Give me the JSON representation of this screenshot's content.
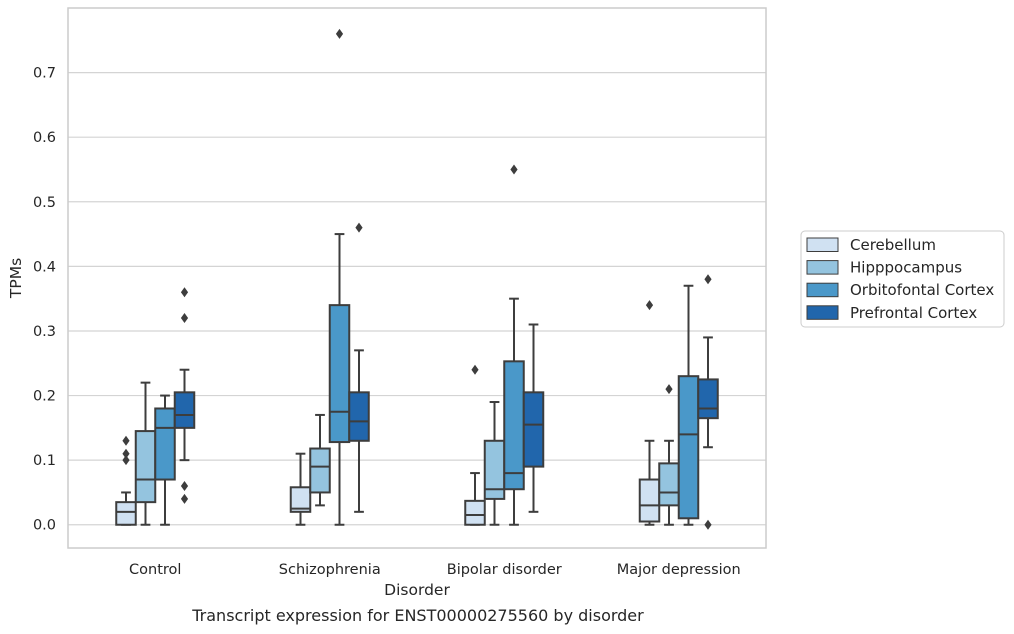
{
  "caption": "Transcript expression for ENST00000275560 by disorder",
  "chart_data": {
    "type": "boxplot",
    "xlabel": "Disorder",
    "ylabel": "TPMs",
    "ylim": [
      -0.036,
      0.8
    ],
    "yticks": [
      0.0,
      0.1,
      0.2,
      0.3,
      0.4,
      0.5,
      0.6,
      0.7
    ],
    "ytick_labels": [
      "0.0",
      "0.1",
      "0.2",
      "0.3",
      "0.4",
      "0.5",
      "0.6",
      "0.7"
    ],
    "grid": "horizontal",
    "legend_position": "right",
    "categories": [
      "Control",
      "Schizophrenia",
      "Bipolar disorder",
      "Major depression"
    ],
    "series": [
      {
        "name": "Cerebellum",
        "color": "#d0e1f2",
        "boxes": [
          {
            "whislo": 0.0,
            "q1": 0.0,
            "med": 0.02,
            "q3": 0.035,
            "whishi": 0.05,
            "fliers": [
              0.1,
              0.11,
              0.13
            ]
          },
          {
            "whislo": 0.0,
            "q1": 0.02,
            "med": 0.025,
            "q3": 0.058,
            "whishi": 0.11,
            "fliers": []
          },
          {
            "whislo": 0.0,
            "q1": 0.0,
            "med": 0.015,
            "q3": 0.037,
            "whishi": 0.08,
            "fliers": [
              0.24
            ]
          },
          {
            "whislo": 0.0,
            "q1": 0.005,
            "med": 0.03,
            "q3": 0.07,
            "whishi": 0.13,
            "fliers": [
              0.34
            ]
          }
        ]
      },
      {
        "name": "Hipppocampus",
        "color": "#94c4df",
        "boxes": [
          {
            "whislo": 0.0,
            "q1": 0.035,
            "med": 0.07,
            "q3": 0.145,
            "whishi": 0.22,
            "fliers": []
          },
          {
            "whislo": 0.03,
            "q1": 0.05,
            "med": 0.09,
            "q3": 0.118,
            "whishi": 0.17,
            "fliers": []
          },
          {
            "whislo": 0.0,
            "q1": 0.04,
            "med": 0.055,
            "q3": 0.13,
            "whishi": 0.19,
            "fliers": []
          },
          {
            "whislo": 0.0,
            "q1": 0.03,
            "med": 0.05,
            "q3": 0.095,
            "whishi": 0.13,
            "fliers": [
              0.21
            ]
          }
        ]
      },
      {
        "name": "Orbitofontal Cortex",
        "color": "#4a98c9",
        "boxes": [
          {
            "whislo": 0.0,
            "q1": 0.07,
            "med": 0.15,
            "q3": 0.18,
            "whishi": 0.2,
            "fliers": []
          },
          {
            "whislo": 0.0,
            "q1": 0.128,
            "med": 0.175,
            "q3": 0.34,
            "whishi": 0.45,
            "fliers": [
              0.76
            ]
          },
          {
            "whislo": 0.0,
            "q1": 0.055,
            "med": 0.08,
            "q3": 0.253,
            "whishi": 0.35,
            "fliers": [
              0.55
            ]
          },
          {
            "whislo": 0.0,
            "q1": 0.01,
            "med": 0.14,
            "q3": 0.23,
            "whishi": 0.37,
            "fliers": []
          }
        ]
      },
      {
        "name": "Prefrontal Cortex",
        "color": "#2166ac",
        "boxes": [
          {
            "whislo": 0.1,
            "q1": 0.15,
            "med": 0.17,
            "q3": 0.205,
            "whishi": 0.24,
            "fliers": [
              0.04,
              0.06,
              0.32,
              0.36
            ]
          },
          {
            "whislo": 0.02,
            "q1": 0.13,
            "med": 0.16,
            "q3": 0.205,
            "whishi": 0.27,
            "fliers": [
              0.46
            ]
          },
          {
            "whislo": 0.02,
            "q1": 0.09,
            "med": 0.155,
            "q3": 0.205,
            "whishi": 0.31,
            "fliers": []
          },
          {
            "whislo": 0.12,
            "q1": 0.165,
            "med": 0.18,
            "q3": 0.225,
            "whishi": 0.29,
            "fliers": [
              0.0,
              0.38
            ]
          }
        ]
      }
    ]
  }
}
